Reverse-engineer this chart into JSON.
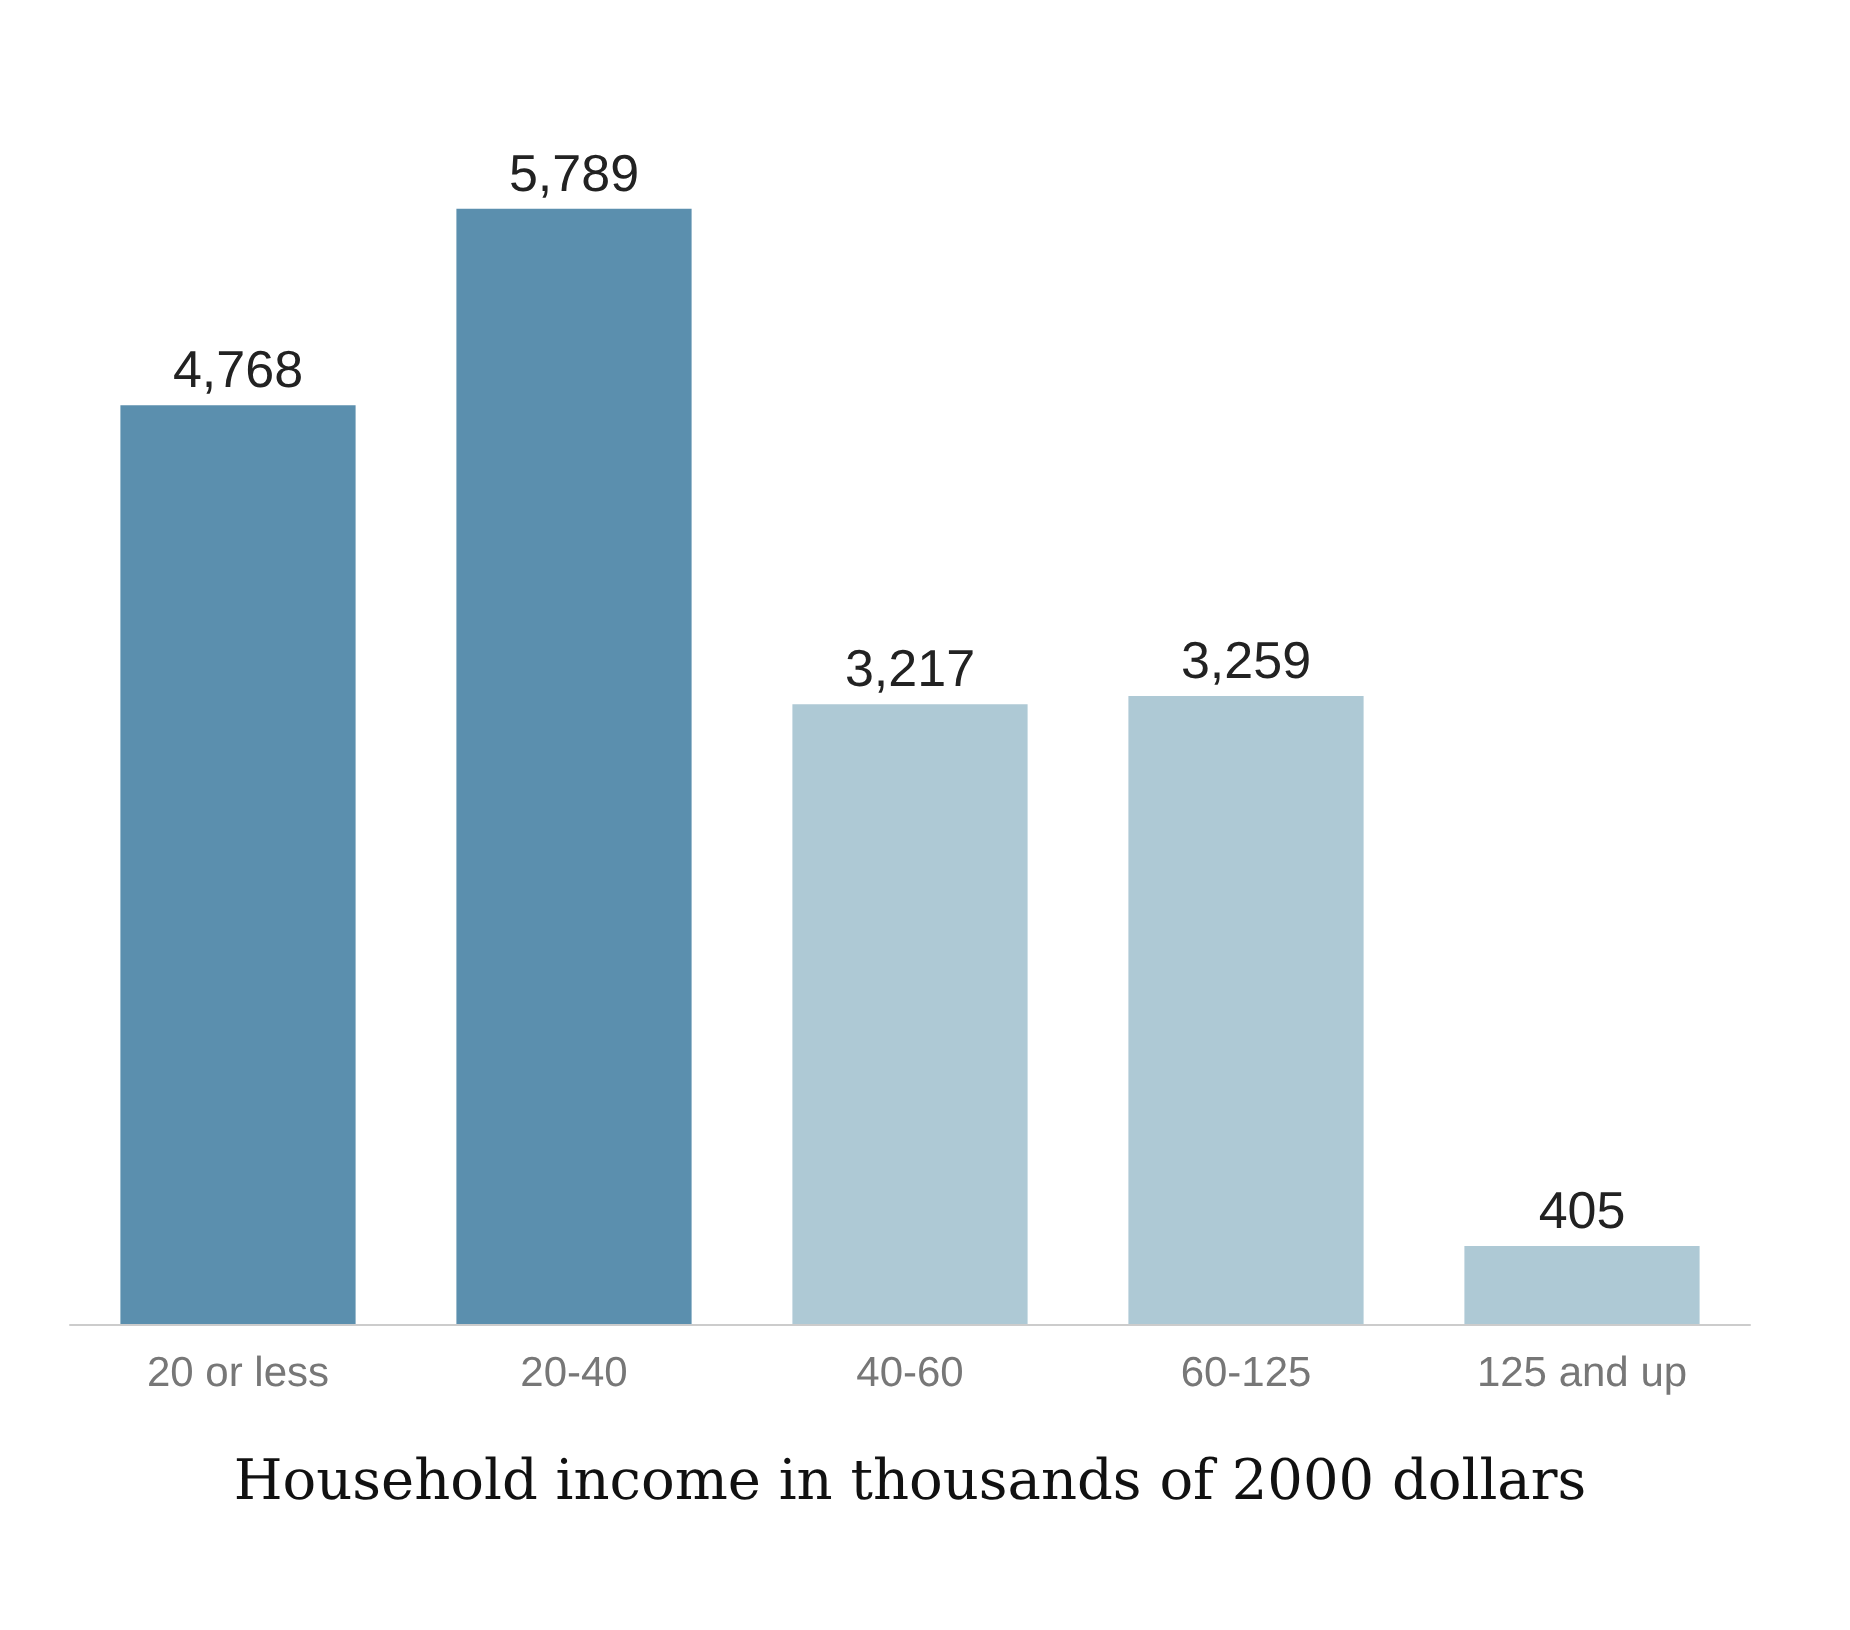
{
  "chart_data": {
    "type": "bar",
    "xlabel": "Household income in thousands of 2000 dollars",
    "categories": [
      "20 or less",
      "20-40",
      "40-60",
      "60-125",
      "125 and up"
    ],
    "values": [
      4768,
      5789,
      3217,
      3259,
      405
    ],
    "colors": [
      "#5b8fae",
      "#5b8fae",
      "#aec9d5",
      "#aec9d5",
      "#aec9d5"
    ],
    "value_labels": [
      "4,768",
      "5,789",
      "3,217",
      "3,259",
      "405"
    ]
  }
}
